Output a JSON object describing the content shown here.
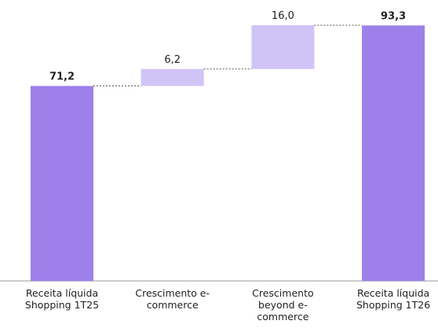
{
  "chart_data": {
    "type": "waterfall",
    "categories": [
      "Receita líquida Shopping 1T25",
      "Crescimento e-commerce",
      "Crescimento beyond e-commerce",
      "Receita líquida Shopping 1T26"
    ],
    "values": [
      71.2,
      6.2,
      16.0,
      93.3
    ],
    "value_labels": [
      "71,2",
      "6,2",
      "16,0",
      "93,3"
    ],
    "measures": [
      "total",
      "relative",
      "relative",
      "total"
    ],
    "colors": {
      "total": "#9d80ea",
      "relative": "#d0c4f6"
    },
    "ylim": [
      0,
      94
    ]
  }
}
